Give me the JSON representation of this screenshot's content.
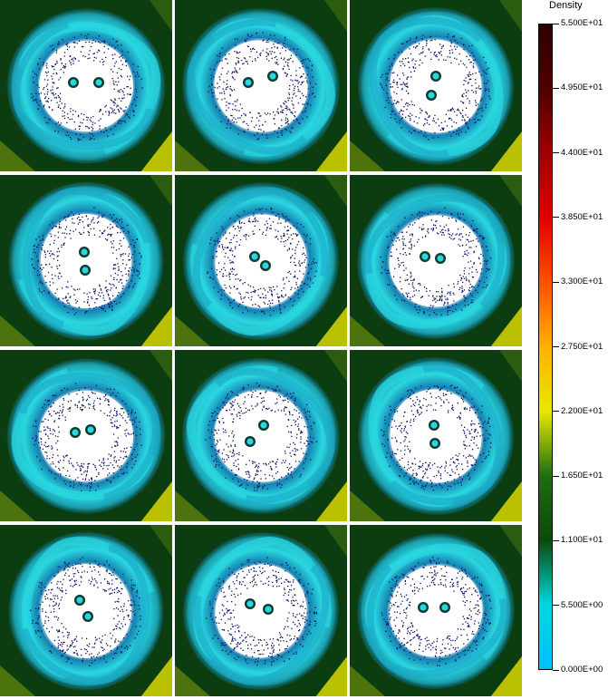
{
  "colorbar": {
    "title": "Density",
    "ticks": [
      "5.500E+01",
      "4.950E+01",
      "4.400E+01",
      "3.850E+01",
      "3.300E+01",
      "2.750E+01",
      "2.200E+01",
      "1.650E+01",
      "1.100E+01",
      "5.500E+00",
      "0.000E+00"
    ],
    "min": 0,
    "max": 55,
    "stops": [
      "#00c0ff",
      "#00d8e0",
      "#0a4a0a",
      "#1e6e10",
      "#e8e800",
      "#ffb000",
      "#ff5000",
      "#e00000",
      "#a00000",
      "#500000",
      "#300000"
    ]
  },
  "grid": {
    "rows": 4,
    "cols": 3
  },
  "colors": {
    "background": "#0b3d10",
    "spiral": "#2ad7e0",
    "spiral_dark": "#1580b0",
    "corner": "#d8d800",
    "core": "#ffffff",
    "dots": "#0a1060"
  },
  "panels": [
    {
      "binary": [
        [
          -14,
          -4
        ],
        [
          14,
          -4
        ]
      ]
    },
    {
      "binary": [
        [
          -14,
          -4
        ],
        [
          13,
          -11
        ]
      ]
    },
    {
      "binary": [
        [
          0,
          -11
        ],
        [
          -5,
          10
        ]
      ]
    },
    {
      "binary": [
        [
          -2,
          -10
        ],
        [
          -1,
          10
        ]
      ]
    },
    {
      "binary": [
        [
          -7,
          -5
        ],
        [
          5,
          5
        ]
      ]
    },
    {
      "binary": [
        [
          -12,
          -5
        ],
        [
          5,
          -3
        ]
      ]
    },
    {
      "binary": [
        [
          -12,
          -4
        ],
        [
          5,
          -7
        ]
      ]
    },
    {
      "binary": [
        [
          -12,
          6
        ],
        [
          3,
          -12
        ]
      ]
    },
    {
      "binary": [
        [
          -2,
          -12
        ],
        [
          -1,
          8
        ]
      ]
    },
    {
      "binary": [
        [
          -7,
          -12
        ],
        [
          2,
          6
        ]
      ]
    },
    {
      "binary": [
        [
          -12,
          -8
        ],
        [
          8,
          -2
        ]
      ]
    },
    {
      "binary": [
        [
          -14,
          -4
        ],
        [
          10,
          -4
        ]
      ]
    }
  ]
}
